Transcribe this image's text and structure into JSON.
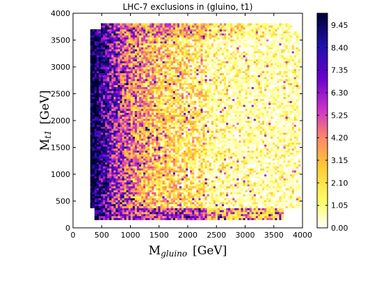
{
  "chart_data": {
    "type": "heatmap",
    "title": "LHC-7 exclusions in (gluino, t1)",
    "xlabel": {
      "main": "M",
      "sub": "gluino",
      "unit": "[GeV]"
    },
    "ylabel": {
      "main": "M",
      "sub": "t1",
      "unit": "[GeV]"
    },
    "xlim": [
      0,
      4000
    ],
    "ylim": [
      0,
      4000
    ],
    "xticks": [
      "0",
      "500",
      "1000",
      "1500",
      "2000",
      "2500",
      "3000",
      "3500",
      "4000"
    ],
    "yticks": [
      "0",
      "500",
      "1000",
      "1500",
      "2000",
      "2500",
      "3000",
      "3500",
      "4000"
    ],
    "colorbar": {
      "min": 0.0,
      "max": 10.0,
      "ticks": [
        "0.00",
        "1.05",
        "2.10",
        "3.15",
        "4.20",
        "5.25",
        "6.30",
        "7.35",
        "8.40",
        "9.45"
      ],
      "colormap": [
        "#ffffff",
        "#ffff66",
        "#ffcc33",
        "#ff8866",
        "#cc33cc",
        "#6600cc",
        "#2211aa",
        "#000033"
      ]
    },
    "data_region": {
      "x_range": [
        300,
        3950
      ],
      "y_range": [
        150,
        3800
      ],
      "pattern": "high values (dark) concentrated at low gluino mass near 300-1500 GeV and along the bottom edge near low t1 mass; low values (white/yellow) dominating at high gluino mass"
    }
  }
}
